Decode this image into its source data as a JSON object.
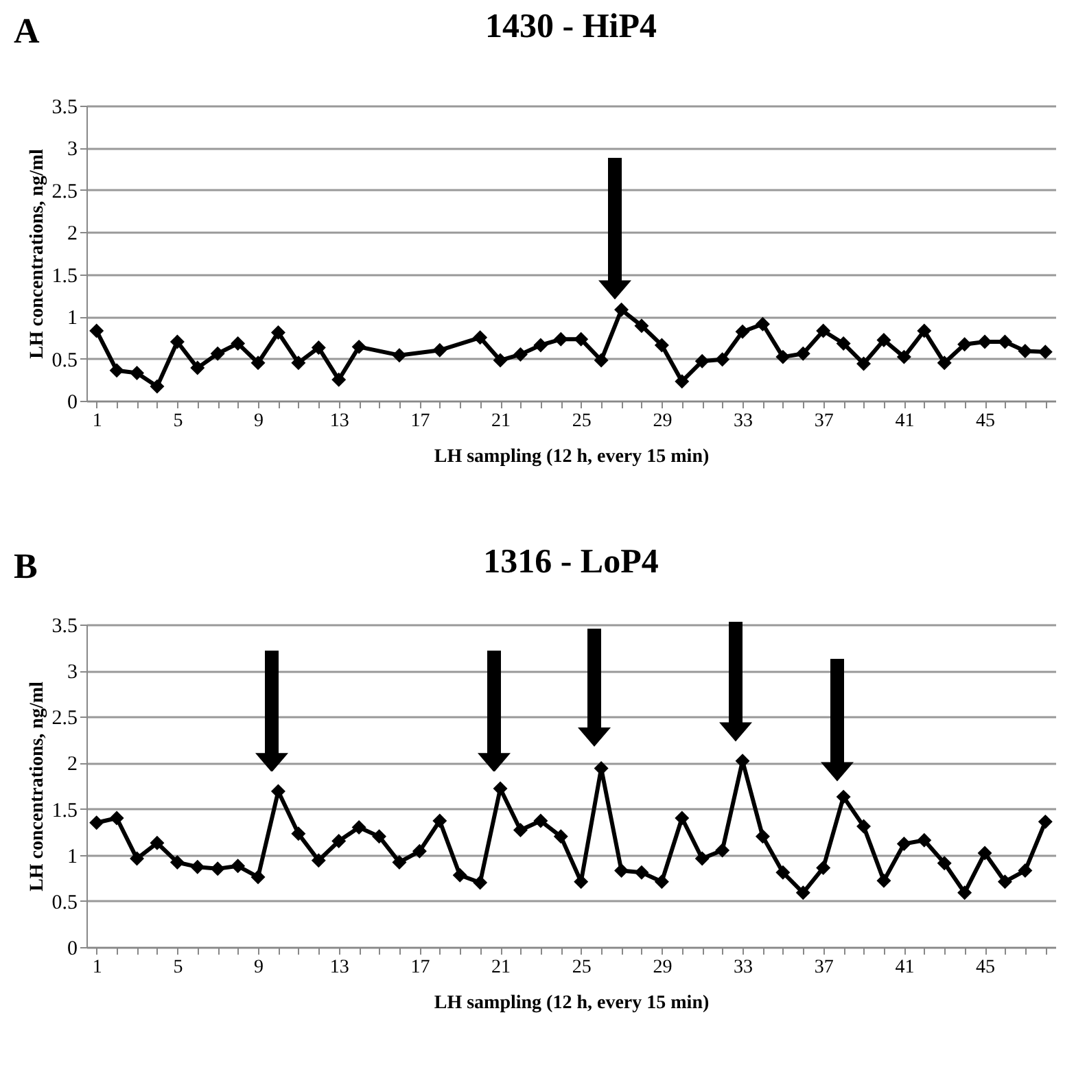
{
  "chart_data": [
    {
      "type": "line",
      "title": "1430 - HiP4",
      "annotations": [
        "A"
      ],
      "xlabel": "LH sampling (12 h, every 15 min)",
      "ylabel": "LH concentrations, ng/ml",
      "categories": [
        "1",
        null,
        null,
        null,
        "5",
        null,
        null,
        null,
        "9",
        null,
        null,
        null,
        "13",
        null,
        null,
        null,
        "17",
        null,
        null,
        null,
        "21",
        null,
        null,
        null,
        "25",
        null,
        null,
        null,
        "29",
        null,
        null,
        null,
        "33",
        null,
        null,
        null,
        "37",
        null,
        null,
        null,
        "41",
        null,
        null,
        null,
        "45",
        null,
        null,
        null
      ],
      "series": [
        {
          "color": "#000000",
          "values": [
            0.83,
            0.36,
            0.33,
            0.17,
            0.7,
            0.39,
            0.56,
            0.68,
            0.45,
            0.81,
            0.45,
            0.63,
            0.25,
            0.64,
            null,
            0.54,
            null,
            0.6,
            null,
            0.75,
            0.48,
            0.55,
            0.66,
            0.73,
            0.73,
            0.48,
            1.08,
            0.89,
            0.66,
            0.23,
            0.47,
            0.49,
            0.82,
            0.91,
            0.52,
            0.56,
            0.83,
            0.68,
            0.44,
            0.72,
            0.52,
            0.83,
            0.45,
            0.67,
            0.7,
            0.7,
            0.59,
            0.58
          ]
        }
      ],
      "ylim": [
        0,
        3.5
      ],
      "yticks": [
        0,
        0.5,
        1,
        1.5,
        2,
        2.5,
        3,
        3.5
      ],
      "grid": "y",
      "marker": "diamond",
      "line_style": "solid",
      "legend": false
    },
    {
      "type": "line",
      "title": "1316 - LoP4",
      "annotations": [
        "B"
      ],
      "xlabel": "LH sampling (12 h, every 15 min)",
      "ylabel": "LH concentrations, ng/ml",
      "categories": [
        "1",
        null,
        null,
        null,
        "5",
        null,
        null,
        null,
        "9",
        null,
        null,
        null,
        "13",
        null,
        null,
        null,
        "17",
        null,
        null,
        null,
        "21",
        null,
        null,
        null,
        "25",
        null,
        null,
        null,
        "29",
        null,
        null,
        null,
        "33",
        null,
        null,
        null,
        "37",
        null,
        null,
        null,
        "41",
        null,
        null,
        null,
        "45",
        null,
        null,
        null
      ],
      "series": [
        {
          "color": "#000000",
          "values": [
            1.35,
            1.4,
            0.96,
            1.13,
            0.92,
            0.87,
            0.85,
            0.88,
            0.76,
            1.69,
            1.23,
            0.94,
            1.15,
            1.3,
            1.2,
            0.92,
            1.04,
            1.37,
            0.78,
            0.7,
            1.72,
            1.27,
            1.37,
            1.2,
            0.71,
            1.94,
            0.83,
            0.81,
            0.71,
            1.4,
            0.96,
            1.05,
            2.02,
            1.2,
            0.81,
            0.59,
            0.86,
            1.63,
            1.31,
            0.72,
            1.12,
            1.16,
            0.91,
            0.59,
            1.02,
            0.71,
            0.83,
            1.36
          ]
        }
      ],
      "ylim": [
        0,
        3.5
      ],
      "yticks": [
        0,
        0.5,
        1,
        1.5,
        2,
        2.5,
        3,
        3.5
      ],
      "grid": "y",
      "marker": "diamond",
      "line_style": "solid",
      "legend": false
    }
  ]
}
